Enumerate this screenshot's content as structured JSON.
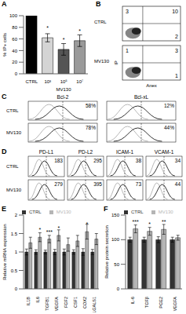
{
  "chart_data": [
    {
      "panel": "A",
      "type": "bar",
      "categories": [
        "CTRL",
        "10³",
        "10⁵",
        "10⁷"
      ],
      "values": [
        100,
        62,
        42,
        57
      ],
      "errors": [
        null,
        7,
        10,
        10
      ],
      "colors": [
        "#000000",
        "#d4d4d4",
        "#555555",
        "#9a9a9a"
      ],
      "annotations": [
        null,
        "*",
        "*",
        "*"
      ],
      "ylabel": "% IP+ cells",
      "xlabel": "MV130",
      "ylim": [
        0,
        100
      ],
      "yticks": [
        0,
        20,
        40,
        60,
        80,
        100
      ]
    },
    {
      "panel": "E",
      "type": "bar",
      "categories": [
        "IL1B",
        "IL6",
        "TGFB1",
        "VEGFA",
        "FGF2",
        "CSF1",
        "COX2",
        "LGALS1"
      ],
      "series": [
        {
          "name": "CTRL",
          "color": "#333333",
          "values": [
            1,
            1,
            1,
            1,
            1,
            1,
            1,
            1
          ],
          "errors": [
            0.08,
            0.06,
            0.05,
            0.07,
            0.08,
            0.06,
            0.09,
            0.07
          ]
        },
        {
          "name": "MV130",
          "color": "#b5b5b5",
          "values": [
            1.25,
            1.4,
            1.35,
            1.45,
            1.2,
            1.3,
            1.55,
            1.35
          ],
          "errors": [
            0.15,
            0.12,
            0.1,
            0.15,
            0.18,
            0.15,
            0.2,
            0.15
          ],
          "annotations": [
            null,
            "*",
            "***",
            "*",
            null,
            null,
            "*",
            null
          ]
        }
      ],
      "ylabel": "Relative mRNA expression",
      "ylim": [
        0,
        2
      ],
      "yticks": [
        0,
        0.5,
        1,
        1.5,
        2
      ],
      "legend": "top-left"
    },
    {
      "panel": "F",
      "type": "bar",
      "categories": [
        "IL-6",
        "TGFβ",
        "PGE2",
        "VEGFA"
      ],
      "series": [
        {
          "name": "CTRL",
          "color": "#333333",
          "values": [
            100,
            100,
            100,
            100
          ],
          "errors": [
            5,
            5,
            6,
            5
          ]
        },
        {
          "name": "MV130",
          "color": "#b5b5b5",
          "values": [
            122,
            117,
            121,
            104
          ],
          "errors": [
            8,
            8,
            10,
            5
          ],
          "annotations": [
            "***",
            "*",
            "**",
            null
          ]
        }
      ],
      "ylabel": "Relative protein secretion",
      "ylim": [
        0,
        150
      ],
      "yticks": [
        0,
        50,
        100,
        150
      ],
      "legend": "top-left"
    }
  ],
  "flow_plots": {
    "panel": "B",
    "xlabel": "Anex",
    "ylabel": "IP",
    "rows": [
      {
        "label": "CTRL",
        "upper_left": 3,
        "upper_right": 10,
        "lower_right": 2
      },
      {
        "label": "MV130",
        "upper_left": 1,
        "upper_right": 3,
        "lower_right": 1
      }
    ]
  },
  "histograms": [
    {
      "panel": "C",
      "rows": [
        "CTRL",
        "MV130"
      ],
      "markers": [
        {
          "name": "Bcl-2",
          "values": [
            58,
            78
          ],
          "value_labels": [
            "58%",
            "78%"
          ]
        },
        {
          "name": "Bcl-xL",
          "values": [
            12,
            44
          ],
          "value_labels": [
            "12%",
            "44%"
          ]
        }
      ]
    },
    {
      "panel": "D",
      "rows": [
        "CTRL",
        "MV130"
      ],
      "markers": [
        {
          "name": "PD-L1",
          "values": [
            183,
            279
          ]
        },
        {
          "name": "PD-L2",
          "values": [
            295,
            395
          ]
        },
        {
          "name": "ICAM-1",
          "values": [
            38,
            73
          ]
        },
        {
          "name": "VCAM-1",
          "values": [
            34,
            44
          ]
        }
      ]
    }
  ]
}
